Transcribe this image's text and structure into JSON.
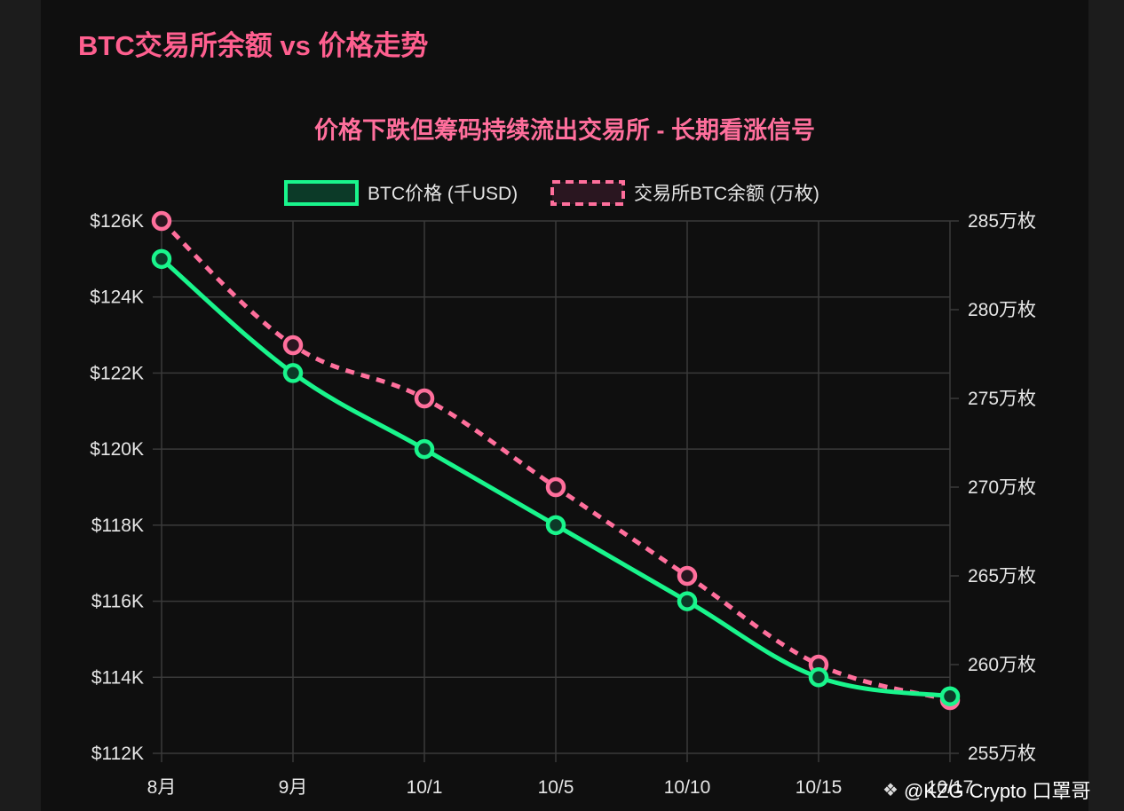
{
  "page": {
    "title": "BTC交易所余额 vs 价格走势"
  },
  "watermark": {
    "icon": "binance-diamond-icon",
    "text": "@KZG Crypto 口罩哥"
  },
  "colors": {
    "background": "#0f0f0f",
    "price_line": "#19f58c",
    "balance_line": "#ff6f9c",
    "title": "#ff5f8f",
    "grid": "#3a3a3a"
  },
  "chart_data": {
    "type": "line",
    "title": "价格下跌但筹码持续流出交易所 - 长期看涨信号",
    "categories": [
      "8月",
      "9月",
      "10/1",
      "10/5",
      "10/10",
      "10/15",
      "10/17"
    ],
    "series": [
      {
        "name": "BTC价格 (千USD)",
        "axis": "left",
        "values": [
          125,
          122,
          120,
          118,
          116,
          114,
          113.5
        ],
        "style": "solid"
      },
      {
        "name": "交易所BTC余额 (万枚)",
        "axis": "right",
        "values": [
          285,
          278,
          275,
          270,
          265,
          260,
          258
        ],
        "style": "dashed"
      }
    ],
    "y_left": {
      "min": 112,
      "max": 126,
      "step": 2,
      "tick_labels": [
        "$126K",
        "$124K",
        "$122K",
        "$120K",
        "$118K",
        "$116K",
        "$114K",
        "$112K"
      ]
    },
    "y_right": {
      "min": 255,
      "max": 285,
      "step": 5,
      "tick_labels": [
        "285万枚",
        "280万枚",
        "275万枚",
        "270万枚",
        "265万枚",
        "260万枚",
        "255万枚"
      ]
    },
    "grid": true,
    "legend_position": "top-center"
  }
}
